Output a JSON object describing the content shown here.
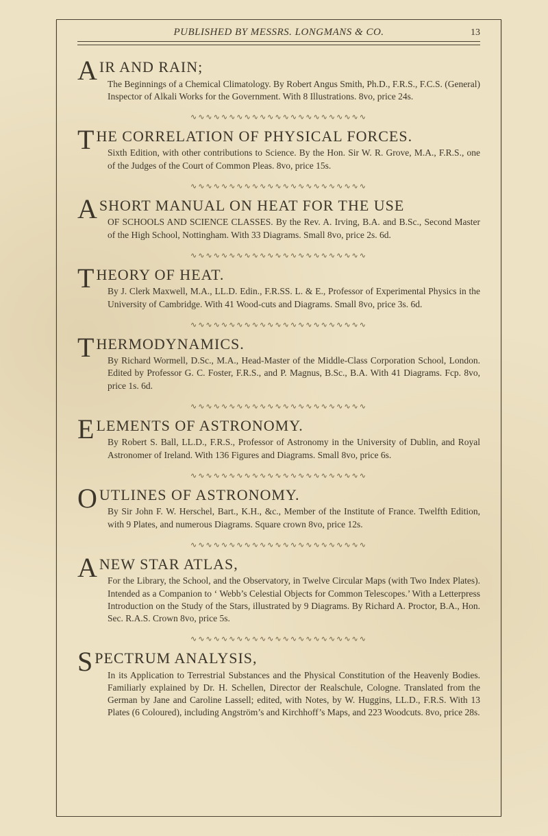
{
  "runningHead": {
    "title": "PUBLISHED BY MESSRS. LONGMANS & CO.",
    "pageNumber": "13"
  },
  "ornament": "∿∿∿∿∿∿∿∿∿∿∿∿∿∿∿∿∿∿∿∿∿∿∿",
  "entries": [
    {
      "dropcap": "A",
      "titleRest": "IR AND RAIN;",
      "body": "The Beginnings of a Chemical Climatology.  By Robert Angus Smith, Ph.D., F.R.S., F.C.S. (General) Inspector of Alkali Works for the Government.  With 8 Illustrations.  8vo, price 24s."
    },
    {
      "dropcap": "T",
      "titleRest": "HE CORRELATION OF PHYSICAL FORCES.",
      "body": "Sixth Edition, with other contributions to Science.  By the Hon. Sir W. R. Grove, M.A., F.R.S., one of the Judges of the Court of Common Pleas.  8vo, price 15s."
    },
    {
      "dropcap": "A",
      "titleRest": " SHORT MANUAL ON HEAT FOR THE USE",
      "body": "OF SCHOOLS AND SCIENCE CLASSES.  By the Rev. A. Irving, B.A. and B.Sc., Second Master of the High School, Nottingham.  With 33 Diagrams.  Small 8vo, price 2s. 6d."
    },
    {
      "dropcap": "T",
      "titleRest": "HEORY OF HEAT.",
      "body": "By J. Clerk Maxwell, M.A., LL.D. Edin., F.R.SS. L. & E., Professor of Experimental Physics in the University of Cambridge.  With 41 Wood-cuts and Diagrams.  Small 8vo, price 3s. 6d."
    },
    {
      "dropcap": "T",
      "titleRest": "HERMODYNAMICS.",
      "body": "By Richard Wormell, D.Sc., M.A., Head-Master of the Middle-Class Corporation School, London.  Edited by Professor G. C. Foster, F.R.S., and P. Magnus, B.Sc., B.A.  With 41 Diagrams.  Fcp. 8vo, price 1s. 6d."
    },
    {
      "dropcap": "E",
      "titleRest": "LEMENTS OF ASTRONOMY.",
      "body": "By Robert S. Ball, LL.D., F.R.S., Professor of Astronomy in the University of Dublin, and Royal Astronomer of Ireland.  With 136 Figures and Diagrams.  Small 8vo, price 6s."
    },
    {
      "dropcap": "O",
      "titleRest": "UTLINES OF ASTRONOMY.",
      "body": "By Sir John F. W. Herschel, Bart., K.H., &c., Member of the Institute of France.  Twelfth Edition, with 9 Plates, and numerous Diagrams.  Square crown 8vo, price 12s."
    },
    {
      "dropcap": "A",
      "titleRest": " NEW STAR ATLAS,",
      "body": "For the Library, the School, and the Observatory, in Twelve Circular Maps (with Two Index Plates).  Intended as a Companion to ‘ Webb’s Celestial Objects for Common Telescopes.’  With a Letterpress Introduction on the Study of the Stars, illustrated by 9 Diagrams.  By Richard A. Proctor, B.A., Hon. Sec. R.A.S.  Crown 8vo, price 5s."
    },
    {
      "dropcap": "S",
      "titleRest": "PECTRUM ANALYSIS,",
      "body": "In its Application to Terrestrial Substances and the Physical Constitution of the Heavenly Bodies.  Familiarly explained by Dr. H. Schellen, Director der Realschule, Cologne.  Translated from the German by Jane and Caroline Lassell; edited, with Notes, by W. Huggins, LL.D., F.R.S.  With 13 Plates (6 Coloured), including Angström’s and Kirchhoff’s Maps, and 223 Woodcuts.  8vo, price 28s."
    }
  ]
}
